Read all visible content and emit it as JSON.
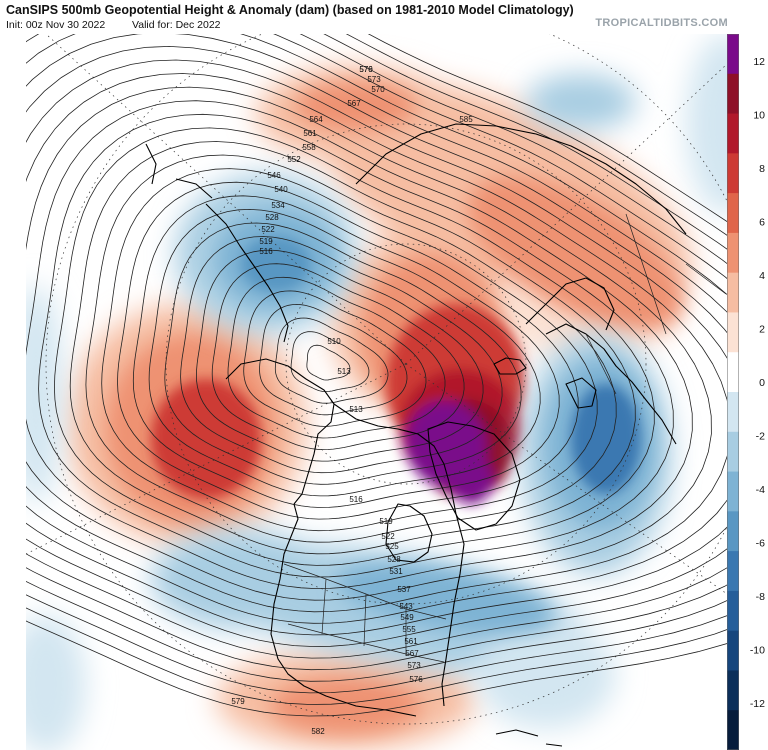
{
  "header": {
    "title": "CanSIPS 500mb Geopotential Height & Anomaly (dam) (based on 1981-2010 Model Climatology)",
    "init": "Init: 00z Nov 30 2022",
    "valid": "Valid for: Dec 2022",
    "brand": "TROPICALTIDBITS.COM"
  },
  "colorbar": {
    "labels": [
      "12",
      "10",
      "8",
      "6",
      "4",
      "2",
      "0",
      "-2",
      "-4",
      "-6",
      "-8",
      "-10",
      "-12"
    ],
    "colors": [
      "#7a0a8a",
      "#8e1028",
      "#b1182b",
      "#cd3a34",
      "#e0654a",
      "#ee9272",
      "#f6bda2",
      "#fce2d4",
      "#ffffff",
      "#d3e6f1",
      "#a8cde2",
      "#7eb3d4",
      "#5997c3",
      "#3a78b1",
      "#255e9a",
      "#16467d",
      "#0c2f5a",
      "#071d3c"
    ]
  },
  "contour_labels": [
    {
      "text": "576",
      "lat": 85
    },
    {
      "text": "573",
      "lat": 83
    },
    {
      "text": "570",
      "lat": 81
    },
    {
      "text": "567",
      "lat": 79
    },
    {
      "text": "564",
      "lat": 77
    },
    {
      "text": "561",
      "lat": 75
    },
    {
      "text": "558",
      "lat": 73
    },
    {
      "text": "552",
      "lat": 70
    },
    {
      "text": "546",
      "lat": 67
    },
    {
      "text": "540",
      "lat": 64
    },
    {
      "text": "534",
      "lat": 61
    },
    {
      "text": "528",
      "lat": 58
    },
    {
      "text": "522",
      "lat": 55
    },
    {
      "text": "519",
      "lat": 53
    },
    {
      "text": "516",
      "lat": 51
    },
    {
      "text": "510",
      "lat": 47
    },
    {
      "text": "513",
      "lat": 49
    },
    {
      "text": "513",
      "lat": 49
    },
    {
      "text": "516",
      "lat": 51
    },
    {
      "text": "519",
      "lat": 53
    },
    {
      "text": "522",
      "lat": 55
    },
    {
      "text": "525",
      "lat": 56
    },
    {
      "text": "528",
      "lat": 58
    },
    {
      "text": "531",
      "lat": 59
    },
    {
      "text": "537",
      "lat": 62
    },
    {
      "text": "543",
      "lat": 65
    },
    {
      "text": "549",
      "lat": 68
    },
    {
      "text": "555",
      "lat": 71
    },
    {
      "text": "561",
      "lat": 74
    },
    {
      "text": "567",
      "lat": 77
    },
    {
      "text": "573",
      "lat": 80
    },
    {
      "text": "576",
      "lat": 82
    },
    {
      "text": "579",
      "lat": 84
    },
    {
      "text": "582",
      "lat": 86
    },
    {
      "text": "585",
      "lat": 88
    },
    {
      "text": "570",
      "lat": 80
    }
  ]
}
